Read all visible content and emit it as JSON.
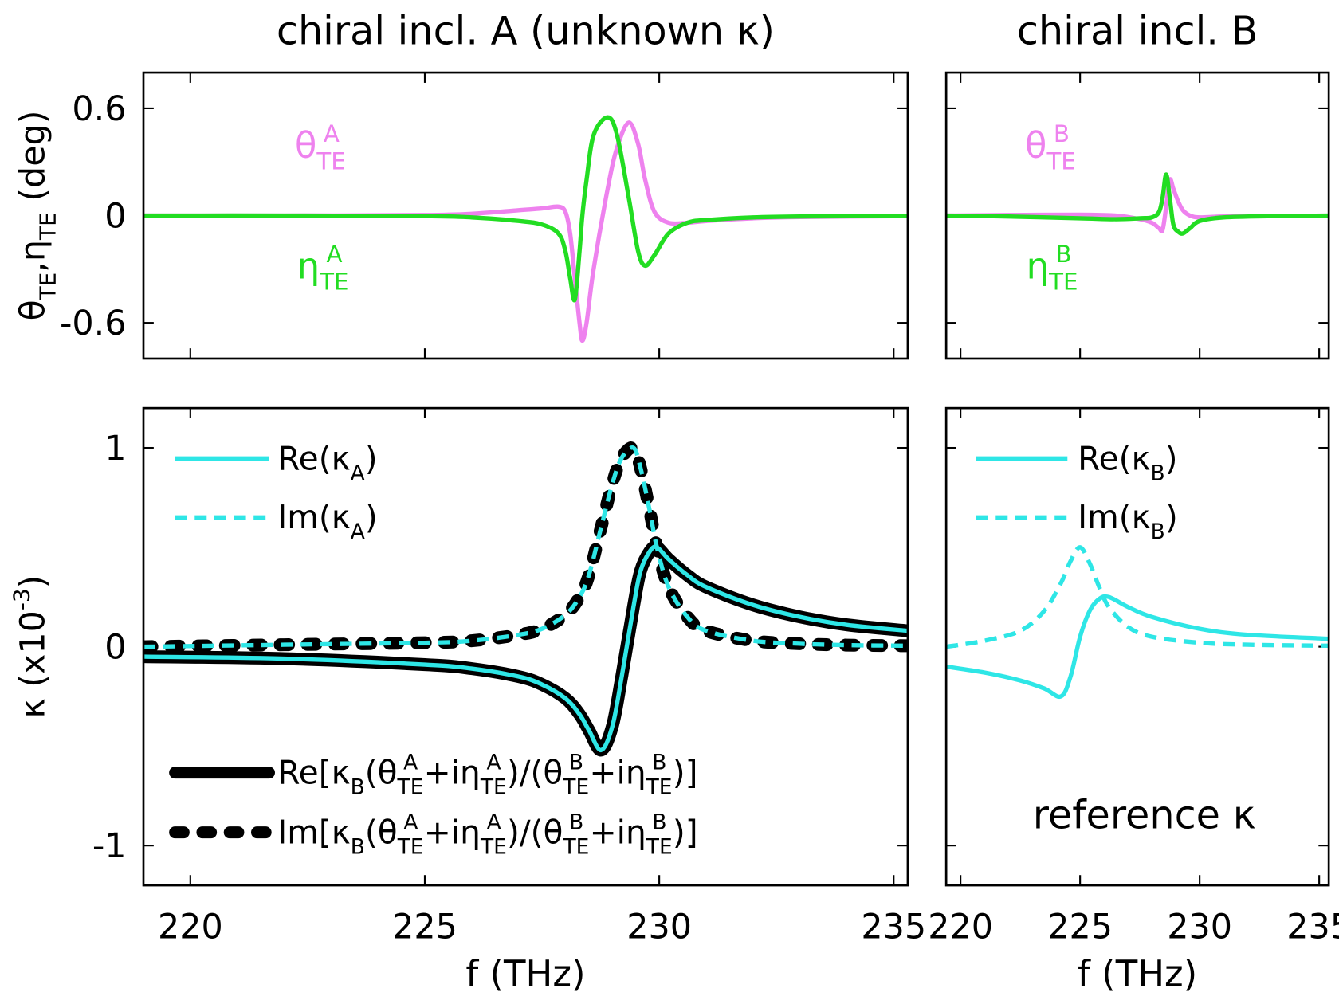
{
  "chart_data": [
    {
      "type": "line",
      "title": "chiral incl. A (unknown κ)",
      "ylabel": "θTE,ηTE (deg)",
      "annotations": [
        "θTEA",
        "ηTEA"
      ],
      "xlim": [
        219,
        235.3
      ],
      "xticks": [
        220,
        225,
        230,
        235
      ],
      "xtick_labels": false,
      "ylim": [
        -0.8,
        0.8
      ],
      "yticks": [
        -0.6,
        0,
        0.6
      ],
      "ytick_labels": true,
      "x": [
        219,
        222,
        225,
        226,
        227,
        227.5,
        227.85,
        228,
        228.1,
        228.2,
        228.3,
        228.36,
        228.45,
        228.6,
        228.9,
        229.1,
        229.35,
        229.55,
        229.7,
        229.9,
        230.2,
        230.6,
        231,
        232,
        233,
        235.3
      ],
      "series": [
        {
          "color": "#ee82ee",
          "values": [
            0,
            0,
            0.003,
            0.01,
            0.03,
            0.04,
            0.05,
            0.02,
            -0.1,
            -0.35,
            -0.6,
            -0.7,
            -0.6,
            -0.3,
            0.15,
            0.38,
            0.52,
            0.4,
            0.2,
            0.02,
            -0.04,
            -0.04,
            -0.03,
            -0.015,
            -0.008,
            -0.003
          ]
        },
        {
          "color": "#22dd22",
          "values": [
            0,
            0,
            -0.003,
            -0.01,
            -0.03,
            -0.05,
            -0.1,
            -0.2,
            -0.35,
            -0.47,
            -0.2,
            0,
            0.2,
            0.45,
            0.55,
            0.45,
            0.1,
            -0.2,
            -0.28,
            -0.22,
            -0.1,
            -0.04,
            -0.025,
            -0.01,
            -0.005,
            -0.002
          ]
        }
      ]
    },
    {
      "type": "line",
      "title": "chiral incl. B",
      "annotations": [
        "θTEB",
        "ηTEB"
      ],
      "xlim": [
        219.4,
        235.4
      ],
      "xticks": [
        220,
        225,
        230,
        235
      ],
      "xtick_labels": false,
      "ylim": [
        -0.8,
        0.8
      ],
      "yticks": [
        -0.6,
        0,
        0.6
      ],
      "ytick_labels": false,
      "x": [
        219.4,
        222,
        225,
        226.5,
        227.5,
        228,
        228.3,
        228.45,
        228.6,
        228.75,
        228.9,
        229.1,
        229.3,
        229.6,
        230,
        231,
        233,
        235.4
      ],
      "series": [
        {
          "color": "#ee82ee",
          "values": [
            0,
            0.003,
            0.005,
            0,
            -0.02,
            -0.04,
            -0.07,
            -0.08,
            0.05,
            0.2,
            0.15,
            0.08,
            0.03,
            0,
            -0.01,
            -0.005,
            -0.002,
            0
          ]
        },
        {
          "color": "#22dd22",
          "values": [
            0,
            -0.005,
            -0.015,
            -0.02,
            -0.015,
            -0.01,
            0.02,
            0.1,
            0.23,
            0.1,
            -0.05,
            -0.09,
            -0.1,
            -0.07,
            -0.03,
            -0.01,
            -0.003,
            0
          ]
        }
      ]
    },
    {
      "type": "line",
      "xlabel": "f (THz)",
      "ylabel": "κ (x10-3)",
      "xlim": [
        219,
        235.3
      ],
      "xticks": [
        220,
        225,
        230,
        235
      ],
      "xtick_labels": true,
      "ylim": [
        -1.2,
        1.2
      ],
      "yticks": [
        -1,
        0,
        1
      ],
      "ytick_labels": true,
      "x": [
        219,
        222,
        225,
        226,
        227,
        227.5,
        228,
        228.3,
        228.5,
        228.76,
        229,
        229.2,
        229.45,
        229.6,
        229.8,
        229.95,
        230.2,
        230.6,
        231,
        232,
        233,
        234,
        235.3
      ],
      "series": [
        {
          "name": "Re(κA)",
          "color": "#2ee6e6",
          "dash": false,
          "values": [
            -0.05,
            -0.06,
            -0.09,
            -0.11,
            -0.15,
            -0.19,
            -0.26,
            -0.34,
            -0.42,
            -0.52,
            -0.4,
            -0.15,
            0.2,
            0.38,
            0.48,
            0.5,
            0.44,
            0.36,
            0.3,
            0.21,
            0.15,
            0.11,
            0.08
          ]
        },
        {
          "name": "Im(κA)",
          "color": "#2ee6e6",
          "dash": true,
          "values": [
            0,
            0.01,
            0.02,
            0.03,
            0.06,
            0.09,
            0.16,
            0.25,
            0.36,
            0.6,
            0.82,
            0.95,
            1.0,
            0.9,
            0.68,
            0.5,
            0.3,
            0.15,
            0.08,
            0.03,
            0.015,
            0.008,
            0.005
          ]
        },
        {
          "name": "Re[κB(θTEA+iηTEA)/(θTEB+iηTEB)]",
          "color": "#000000",
          "dash": false,
          "values": [
            -0.05,
            -0.06,
            -0.09,
            -0.11,
            -0.15,
            -0.19,
            -0.26,
            -0.34,
            -0.42,
            -0.52,
            -0.4,
            -0.15,
            0.2,
            0.38,
            0.48,
            0.5,
            0.44,
            0.36,
            0.3,
            0.21,
            0.15,
            0.11,
            0.08
          ]
        },
        {
          "name": "Im[κB(θTEA+iηTEA)/(θTEB+iηTEB)]",
          "color": "#000000",
          "dash": true,
          "values": [
            0,
            0.01,
            0.02,
            0.03,
            0.06,
            0.09,
            0.16,
            0.25,
            0.36,
            0.6,
            0.82,
            0.95,
            1.0,
            0.9,
            0.68,
            0.5,
            0.3,
            0.15,
            0.08,
            0.03,
            0.015,
            0.008,
            0.005
          ]
        }
      ]
    },
    {
      "type": "line",
      "xlabel": "f (THz)",
      "annotations": [
        "reference κ"
      ],
      "xlim": [
        219.4,
        235.4
      ],
      "xticks": [
        220,
        225,
        230,
        235
      ],
      "xtick_labels": true,
      "ylim": [
        -1.2,
        1.2
      ],
      "yticks": [
        -1,
        0,
        1
      ],
      "ytick_labels": false,
      "x": [
        219.4,
        221,
        222.5,
        223.5,
        224.2,
        224.6,
        225,
        225.4,
        225.8,
        226.2,
        227,
        228,
        230,
        232,
        235.4
      ],
      "series": [
        {
          "name": "Re(κB)",
          "color": "#2ee6e6",
          "dash": false,
          "values": [
            -0.1,
            -0.13,
            -0.17,
            -0.21,
            -0.25,
            -0.15,
            0.05,
            0.18,
            0.24,
            0.25,
            0.2,
            0.15,
            0.09,
            0.06,
            0.04
          ]
        },
        {
          "name": "Im(κB)",
          "color": "#2ee6e6",
          "dash": true,
          "values": [
            0,
            0.03,
            0.08,
            0.18,
            0.32,
            0.43,
            0.5,
            0.42,
            0.3,
            0.2,
            0.1,
            0.05,
            0.02,
            0.01,
            0.005
          ]
        }
      ]
    }
  ]
}
